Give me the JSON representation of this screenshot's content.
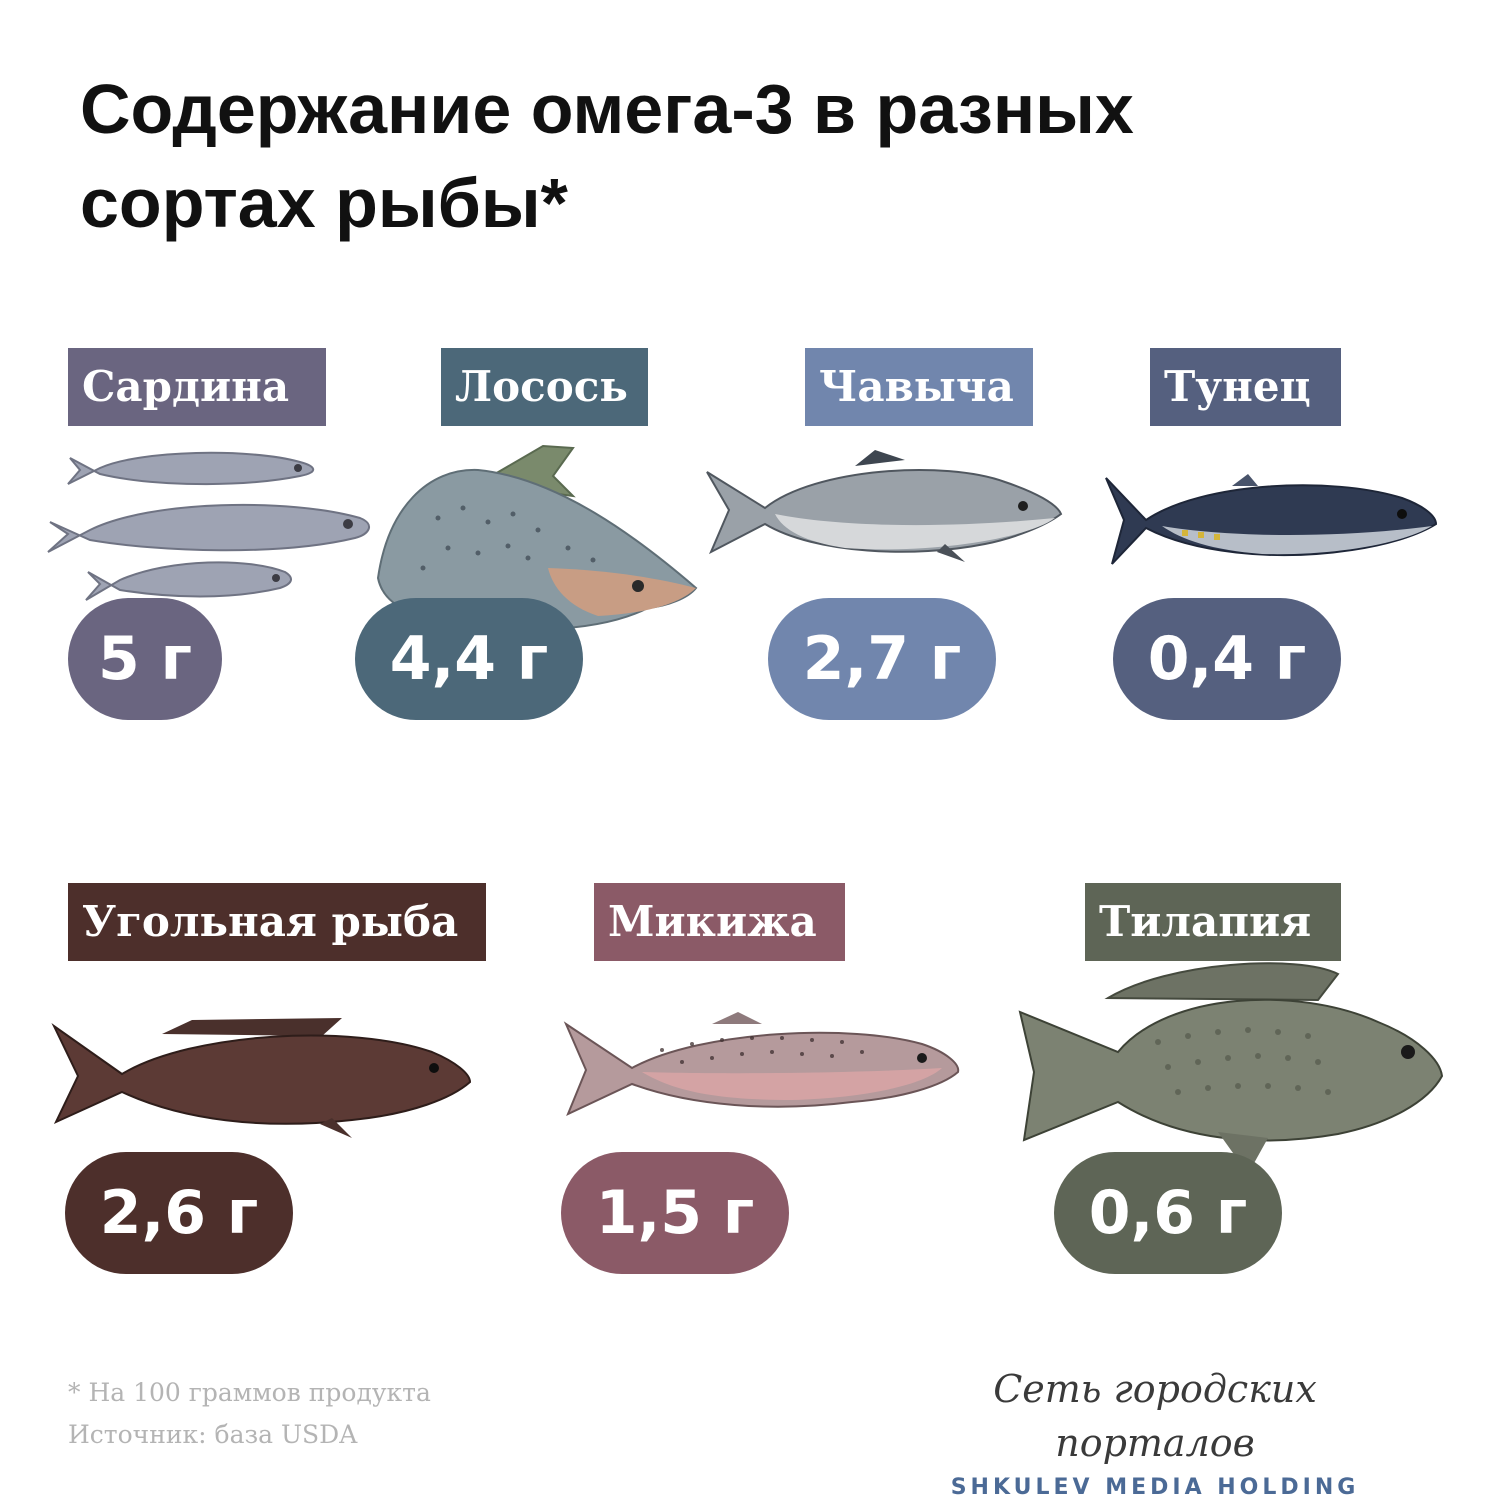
{
  "title": {
    "line1": "Содержание омега-3 в разных",
    "line2": "сортах рыбы*"
  },
  "fish": [
    {
      "name": "Сардина",
      "value": "5 г",
      "color": "#6a6580",
      "icon": "sardine-icon"
    },
    {
      "name": "Лосось",
      "value": "4,4 г",
      "color": "#4c6879",
      "icon": "salmon-icon"
    },
    {
      "name": "Чавыча",
      "value": "2,7 г",
      "color": "#7186ad",
      "icon": "chinook-icon"
    },
    {
      "name": "Тунец",
      "value": "0,4 г",
      "color": "#55607f",
      "icon": "tuna-icon"
    },
    {
      "name": "Угольная рыба",
      "value": "2,6 г",
      "color": "#4d2f2b",
      "icon": "sablefish-icon"
    },
    {
      "name": "Микижа",
      "value": "1,5 г",
      "color": "#8b5a67",
      "icon": "trout-icon"
    },
    {
      "name": "Тилапия",
      "value": "0,6 г",
      "color": "#5e6556",
      "icon": "tilapia-icon"
    }
  ],
  "footnote": {
    "line1": "* На 100 граммов продукта",
    "line2": "Источник: база USDA"
  },
  "brand": {
    "top": "Сеть городских порталов",
    "bottom": "SHKULEV MEDIA HOLDING"
  }
}
